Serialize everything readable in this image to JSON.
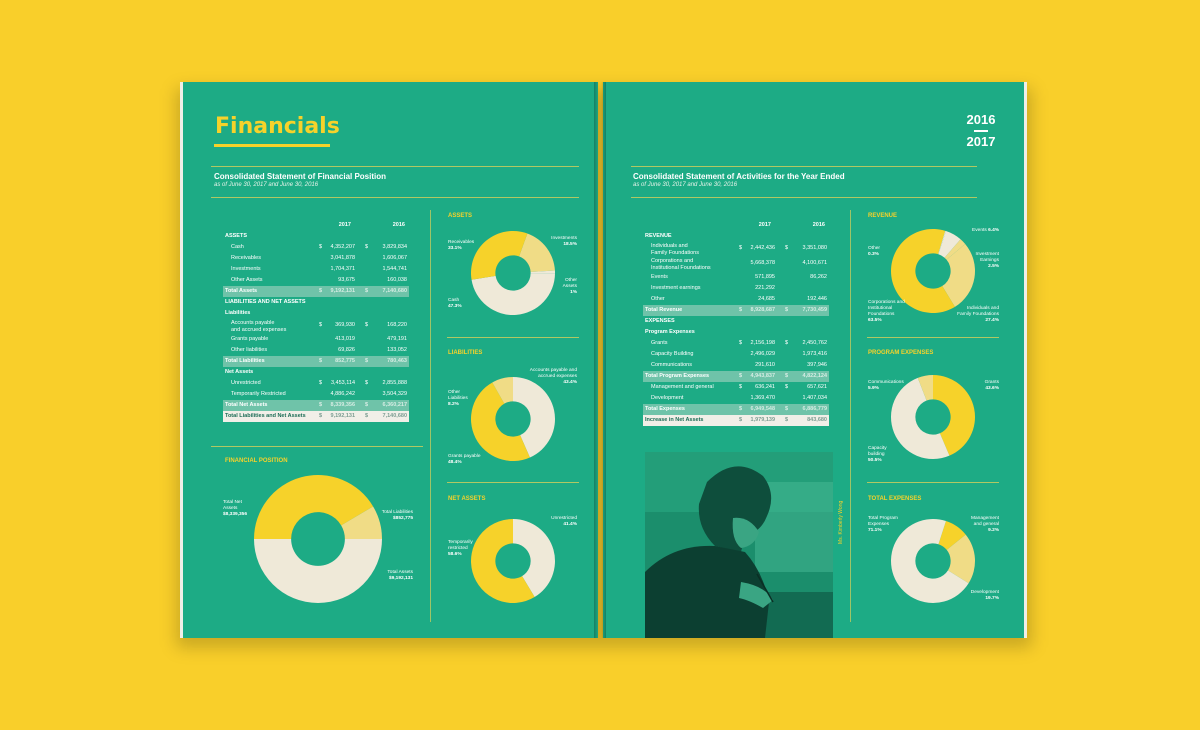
{
  "left_page": {
    "title": "Financials",
    "statement": {
      "title": "Consolidated Statement of Financial Position",
      "subtitle": "as of June 30, 2017 and June 30, 2016",
      "col1": "2017",
      "col2": "2016",
      "dollar": "$",
      "rows": [
        {
          "label": "ASSETS",
          "type": "head"
        },
        {
          "label": "Cash",
          "v1": "4,352,207",
          "v2": "3,829,834",
          "d": true,
          "type": "ind"
        },
        {
          "label": "Receivables",
          "v1": "3,041,878",
          "v2": "1,606,067",
          "type": "ind"
        },
        {
          "label": "Investments",
          "v1": "1,704,371",
          "v2": "1,544,741",
          "type": "ind"
        },
        {
          "label": "Other Assets",
          "v1": "93,675",
          "v2": "160,038",
          "type": "ind"
        },
        {
          "label": "Total Assets",
          "v1": "9,192,131",
          "v2": "7,140,680",
          "d": true,
          "type": "total"
        },
        {
          "label": "LIABILITIES AND NET ASSETS",
          "type": "head"
        },
        {
          "label": "Liabilities",
          "type": "head"
        },
        {
          "label": "Accounts payable",
          "label2": "and accrued expenses",
          "v1": "369,930",
          "v2": "168,220",
          "d": true,
          "type": "ind two"
        },
        {
          "label": "Grants payable",
          "v1": "413,019",
          "v2": "479,191",
          "type": "ind"
        },
        {
          "label": "Other liabilities",
          "v1": "69,826",
          "v2": "133,052",
          "type": "ind"
        },
        {
          "label": "Total Liabilities",
          "v1": "852,775",
          "v2": "780,463",
          "d": true,
          "type": "total"
        },
        {
          "label": "Net Assets",
          "type": "head"
        },
        {
          "label": "Unrestricted",
          "v1": "3,453,114",
          "v2": "2,855,888",
          "d": true,
          "type": "ind"
        },
        {
          "label": "Temporarily Restricted",
          "v1": "4,886,242",
          "v2": "3,504,329",
          "type": "ind"
        },
        {
          "label": "Total Net Assets",
          "v1": "8,339,356",
          "v2": "6,360,217",
          "d": true,
          "type": "total"
        },
        {
          "label": "Total Liabilities and Net Assets",
          "v1": "9,192,131",
          "v2": "7,140,680",
          "d": true,
          "type": "grand"
        }
      ]
    },
    "financial_position": {
      "title": "FINANCIAL POSITION",
      "net_assets_label": "Total Net Assets",
      "net_assets_value": "$8,339,356",
      "liabilities_label": "Total Liabilities",
      "liabilities_value": "$852,775",
      "assets_label": "Total Assets",
      "assets_value": "$9,192,131"
    },
    "assets_chart": {
      "title": "ASSETS",
      "receivables": "Receivables",
      "receivables_pct": "33.1%",
      "investments": "Investments",
      "investments_pct": "18.5%",
      "other": "Other Assets",
      "other_pct": "1%",
      "cash": "Cash",
      "cash_pct": "47.3%"
    },
    "liabilities_chart": {
      "title": "LIABILITIES",
      "other": "Other Liabilities",
      "other_pct": "8.2%",
      "accounts": "Accounts payable and accrued expenses",
      "accounts_pct": "43.4%",
      "grants": "Grants payable",
      "grants_pct": "48.4%"
    },
    "net_assets_chart": {
      "title": "NET ASSETS",
      "unrestricted": "Unrestricted",
      "unrestricted_pct": "41.4%",
      "temp": "Temporarily restricted",
      "temp_pct": "58.6%"
    }
  },
  "right_page": {
    "year_top": "2016",
    "year_bottom": "2017",
    "statement": {
      "title": "Consolidated Statement of Activities for the Year Ended",
      "subtitle": "as of June 30, 2017 and June 30, 2016",
      "col1": "2017",
      "col2": "2016",
      "dollar": "$",
      "rows": [
        {
          "label": "REVENUE",
          "type": "head"
        },
        {
          "label": "Individuals and",
          "label2": "Family Foundations",
          "v1": "2,442,436",
          "v2": "3,351,080",
          "d": true,
          "type": "ind two"
        },
        {
          "label": "Corporations and",
          "label2": "Institutional Foundations",
          "v1": "5,668,378",
          "v2": "4,100,671",
          "type": "ind two"
        },
        {
          "label": "Events",
          "v1": "571,895",
          "v2": "86,262",
          "type": "ind"
        },
        {
          "label": "Investment earnings",
          "v1": "221,292",
          "v2": "",
          "type": "ind"
        },
        {
          "label": "Other",
          "v1": "24,685",
          "v2": "192,446",
          "type": "ind"
        },
        {
          "label": "Total Revenue",
          "v1": "8,928,687",
          "v2": "7,730,459",
          "d": true,
          "type": "total"
        },
        {
          "label": "EXPENSES",
          "type": "head"
        },
        {
          "label": "Program Expenses",
          "type": "head"
        },
        {
          "label": "Grants",
          "v1": "2,156,198",
          "v2": "2,450,762",
          "d": true,
          "type": "ind"
        },
        {
          "label": "Capacity Building",
          "v1": "2,496,029",
          "v2": "1,973,416",
          "type": "ind"
        },
        {
          "label": "Communications",
          "v1": "291,610",
          "v2": "397,946",
          "type": "ind"
        },
        {
          "label": "Total Program Expenses",
          "v1": "4,943,837",
          "v2": "4,822,124",
          "d": true,
          "type": "total"
        },
        {
          "label": "Management and general",
          "v1": "636,241",
          "v2": "657,621",
          "d": true,
          "type": "ind"
        },
        {
          "label": "Development",
          "v1": "1,369,470",
          "v2": "1,407,034",
          "type": "ind"
        },
        {
          "label": "Total Expenses",
          "v1": "6,949,548",
          "v2": "6,886,779",
          "d": true,
          "type": "total"
        },
        {
          "label": "Increase in Net Assets",
          "v1": "1,979,139",
          "v2": "843,680",
          "d": true,
          "type": "grand"
        }
      ]
    },
    "revenue_chart": {
      "title": "REVENUE",
      "events": "Events",
      "events_pct": "6.4%",
      "other": "Other",
      "other_pct": "0.3%",
      "investment": "Investment Earnings",
      "investment_pct": "2.5%",
      "corporations": "Corporations and Institutional Foundations",
      "corporations_pct": "63.5%",
      "individuals": "Individuals and Family Foundations",
      "individuals_pct": "27.4%"
    },
    "program_chart": {
      "title": "PROGRAM EXPENSES",
      "communications": "Communications",
      "communications_pct": "5.9%",
      "grants": "Grants",
      "grants_pct": "43.6%",
      "capacity": "Capacity building",
      "capacity_pct": "50.5%"
    },
    "total_expenses_chart": {
      "title": "TOTAL EXPENSES",
      "program": "Total Program Expenses",
      "program_pct": "71.1%",
      "management": "Management and general",
      "management_pct": "9.2%",
      "development": "Development",
      "development_pct": "19.7%"
    },
    "photo_credit": "Ms. Kimberly Wong"
  },
  "colors": {
    "page": "#1dab85",
    "yellow": "#f6d22a",
    "cream": "#efe9d8",
    "light_yellow": "#f0dc86",
    "background": "#f9cf2a"
  }
}
